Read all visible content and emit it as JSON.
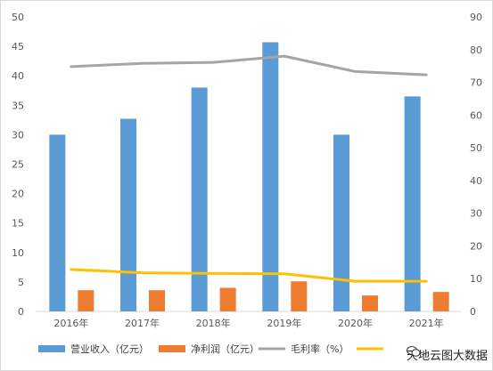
{
  "chart_data": {
    "type": "bar",
    "title": "",
    "xlabel": "",
    "ylabel": "",
    "categories": [
      "2016年",
      "2017年",
      "2018年",
      "2019年",
      "2020年",
      "2021年"
    ],
    "series": [
      {
        "name": "营业收入（亿元）",
        "type": "bar",
        "axis": "left",
        "color": "#5b9bd5",
        "values": [
          30.0,
          32.7,
          38.0,
          45.7,
          30.0,
          36.5
        ]
      },
      {
        "name": "净利润（亿元）",
        "type": "bar",
        "axis": "left",
        "color": "#ed7d31",
        "values": [
          3.6,
          3.6,
          4.0,
          5.1,
          2.7,
          3.3
        ]
      },
      {
        "name": "毛利率（%）",
        "type": "line",
        "axis": "right",
        "color": "#a5a5a5",
        "values": [
          74.8,
          75.8,
          76.1,
          78.0,
          73.3,
          72.3
        ]
      },
      {
        "name": "",
        "type": "line",
        "axis": "right",
        "color": "#ffc000",
        "values": [
          12.8,
          11.8,
          11.6,
          11.5,
          9.2,
          9.2
        ]
      }
    ],
    "ylim": [
      0,
      50
    ],
    "yticks": [
      0,
      5,
      10,
      15,
      20,
      25,
      30,
      35,
      40,
      45,
      50
    ],
    "y2lim": [
      0,
      90
    ],
    "y2ticks": [
      0,
      10,
      20,
      30,
      40,
      50,
      60,
      70,
      80,
      90
    ],
    "grid": false,
    "legend_position": "bottom"
  },
  "watermark": {
    "text": "天地云图大数据"
  }
}
